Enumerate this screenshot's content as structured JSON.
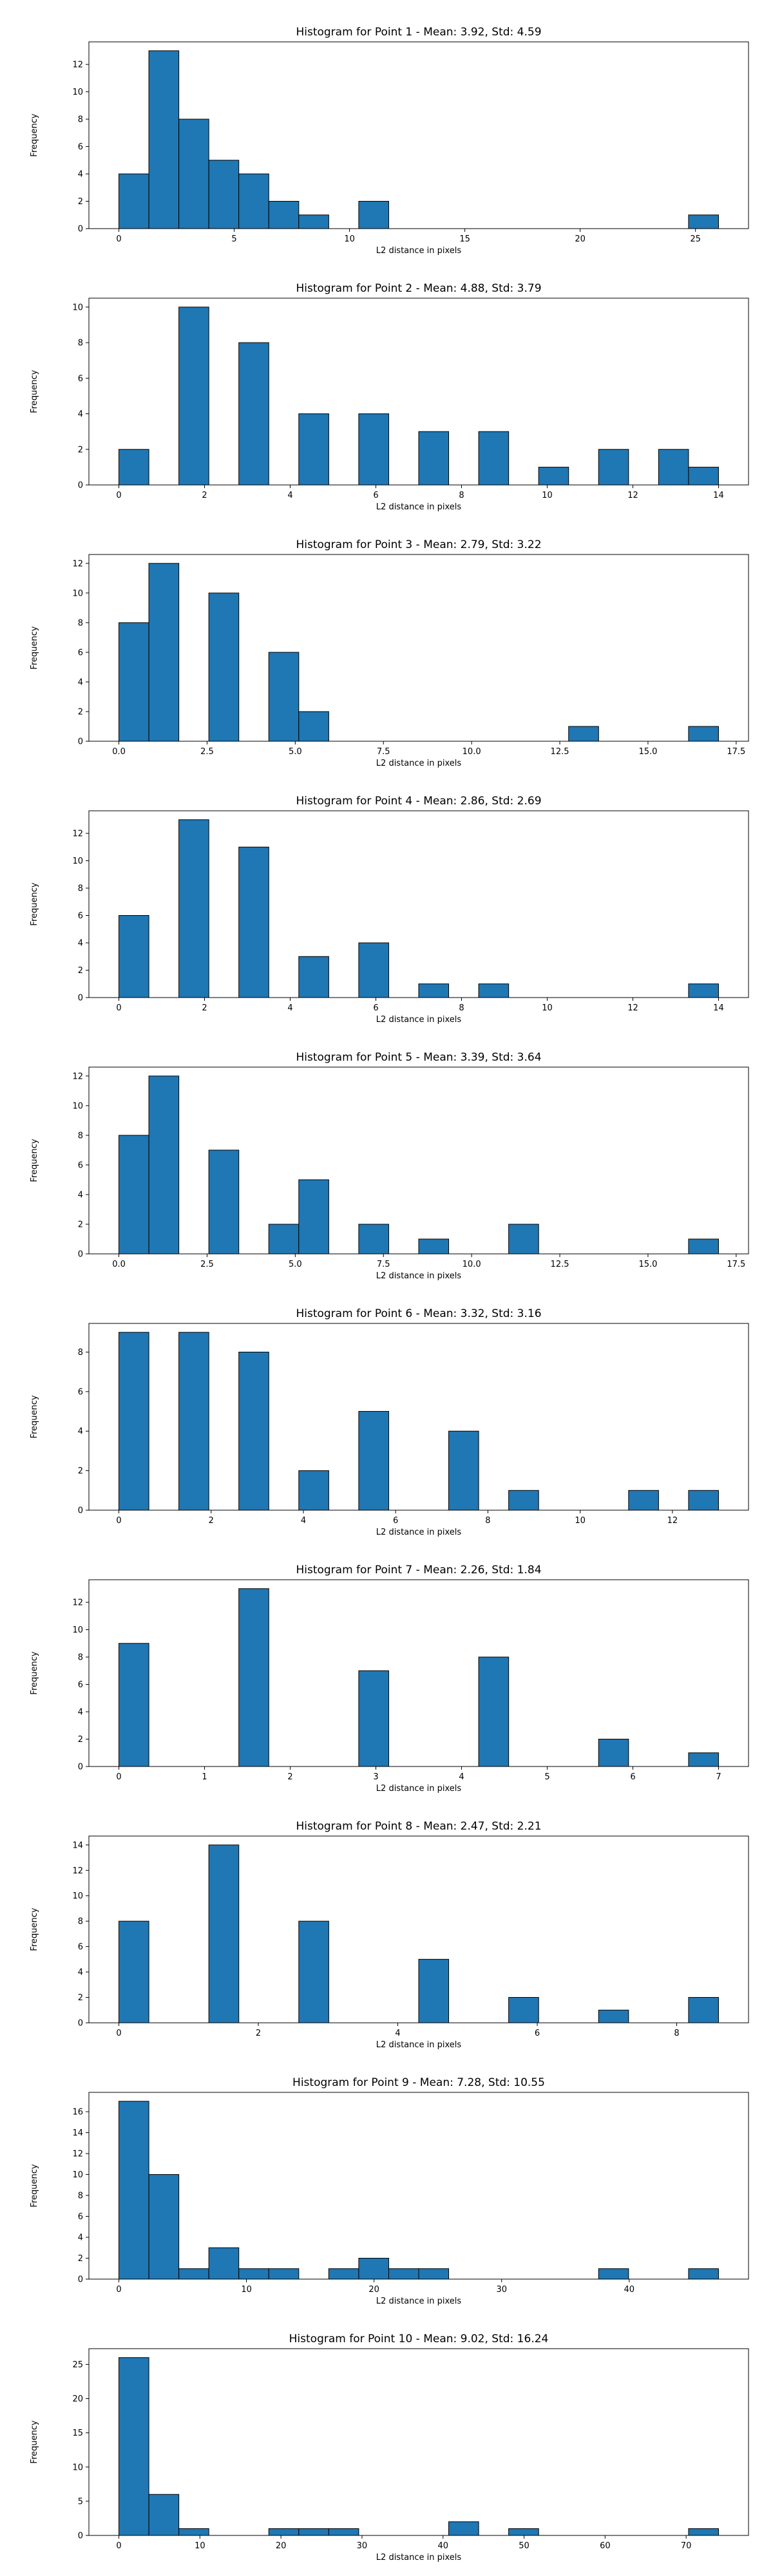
{
  "chart_data": [
    {
      "type": "bar",
      "title": "Histogram for Point 1 - Mean: 3.92, Std: 4.59",
      "xlabel": "L2 distance in pixels",
      "ylabel": "Frequency",
      "xlim": [
        -1.3,
        27.3
      ],
      "ylim": [
        0,
        13.65
      ],
      "xticks": [
        0,
        5,
        10,
        15,
        20,
        25
      ],
      "xtick_labels": [
        "0",
        "5",
        "10",
        "15",
        "20",
        "25"
      ],
      "yticks": [
        0,
        2,
        4,
        6,
        8,
        10,
        12
      ],
      "bins": [
        {
          "x0": 0,
          "x1": 1.3,
          "value": 4
        },
        {
          "x0": 1.3,
          "x1": 2.6,
          "value": 13
        },
        {
          "x0": 2.6,
          "x1": 3.9,
          "value": 8
        },
        {
          "x0": 3.9,
          "x1": 5.2,
          "value": 5
        },
        {
          "x0": 5.2,
          "x1": 6.5,
          "value": 4
        },
        {
          "x0": 6.5,
          "x1": 7.8,
          "value": 2
        },
        {
          "x0": 7.8,
          "x1": 9.1,
          "value": 1
        },
        {
          "x0": 10.4,
          "x1": 11.7,
          "value": 2
        },
        {
          "x0": 24.7,
          "x1": 26.0,
          "value": 1
        }
      ]
    },
    {
      "type": "bar",
      "title": "Histogram for Point 2 - Mean: 4.88, Std: 3.79",
      "xlabel": "L2 distance in pixels",
      "ylabel": "Frequency",
      "xlim": [
        -0.7,
        14.7
      ],
      "ylim": [
        0,
        10.5
      ],
      "xticks": [
        0,
        2,
        4,
        6,
        8,
        10,
        12,
        14
      ],
      "xtick_labels": [
        "0",
        "2",
        "4",
        "6",
        "8",
        "10",
        "12",
        "14"
      ],
      "yticks": [
        0,
        2,
        4,
        6,
        8,
        10
      ],
      "bins": [
        {
          "x0": 0,
          "x1": 0.7,
          "value": 2
        },
        {
          "x0": 1.4,
          "x1": 2.1,
          "value": 10
        },
        {
          "x0": 2.8,
          "x1": 3.5,
          "value": 8
        },
        {
          "x0": 4.2,
          "x1": 4.9,
          "value": 4
        },
        {
          "x0": 5.6,
          "x1": 6.3,
          "value": 4
        },
        {
          "x0": 7.0,
          "x1": 7.7,
          "value": 3
        },
        {
          "x0": 8.4,
          "x1": 9.1,
          "value": 3
        },
        {
          "x0": 9.8,
          "x1": 10.5,
          "value": 1
        },
        {
          "x0": 11.2,
          "x1": 11.9,
          "value": 2
        },
        {
          "x0": 12.6,
          "x1": 13.3,
          "value": 2
        },
        {
          "x0": 13.3,
          "x1": 14.0,
          "value": 1
        }
      ]
    },
    {
      "type": "bar",
      "title": "Histogram for Point 3 - Mean: 2.79, Std: 3.22",
      "xlabel": "L2 distance in pixels",
      "ylabel": "Frequency",
      "xlim": [
        -0.85,
        17.85
      ],
      "ylim": [
        0,
        12.6
      ],
      "xticks": [
        0,
        2.5,
        5,
        7.5,
        10,
        12.5,
        15,
        17.5
      ],
      "xtick_labels": [
        "0.0",
        "2.5",
        "5.0",
        "7.5",
        "10.0",
        "12.5",
        "15.0",
        "17.5"
      ],
      "yticks": [
        0,
        2,
        4,
        6,
        8,
        10,
        12
      ],
      "bins": [
        {
          "x0": 0,
          "x1": 0.85,
          "value": 8
        },
        {
          "x0": 0.85,
          "x1": 1.7,
          "value": 12
        },
        {
          "x0": 2.55,
          "x1": 3.4,
          "value": 10
        },
        {
          "x0": 4.25,
          "x1": 5.1,
          "value": 6
        },
        {
          "x0": 5.1,
          "x1": 5.95,
          "value": 2
        },
        {
          "x0": 12.75,
          "x1": 13.6,
          "value": 1
        },
        {
          "x0": 16.15,
          "x1": 17.0,
          "value": 1
        }
      ]
    },
    {
      "type": "bar",
      "title": "Histogram for Point 4 - Mean: 2.86, Std: 2.69",
      "xlabel": "L2 distance in pixels",
      "ylabel": "Frequency",
      "xlim": [
        -0.7,
        14.7
      ],
      "ylim": [
        0,
        13.65
      ],
      "xticks": [
        0,
        2,
        4,
        6,
        8,
        10,
        12,
        14
      ],
      "xtick_labels": [
        "0",
        "2",
        "4",
        "6",
        "8",
        "10",
        "12",
        "14"
      ],
      "yticks": [
        0,
        2,
        4,
        6,
        8,
        10,
        12
      ],
      "bins": [
        {
          "x0": 0,
          "x1": 0.7,
          "value": 6
        },
        {
          "x0": 1.4,
          "x1": 2.1,
          "value": 13
        },
        {
          "x0": 2.8,
          "x1": 3.5,
          "value": 11
        },
        {
          "x0": 4.2,
          "x1": 4.9,
          "value": 3
        },
        {
          "x0": 5.6,
          "x1": 6.3,
          "value": 4
        },
        {
          "x0": 7.0,
          "x1": 7.7,
          "value": 1
        },
        {
          "x0": 8.4,
          "x1": 9.1,
          "value": 1
        },
        {
          "x0": 13.3,
          "x1": 14.0,
          "value": 1
        }
      ]
    },
    {
      "type": "bar",
      "title": "Histogram for Point 5 - Mean: 3.39, Std: 3.64",
      "xlabel": "L2 distance in pixels",
      "ylabel": "Frequency",
      "xlim": [
        -0.85,
        17.85
      ],
      "ylim": [
        0,
        12.6
      ],
      "xticks": [
        0,
        2.5,
        5,
        7.5,
        10,
        12.5,
        15,
        17.5
      ],
      "xtick_labels": [
        "0.0",
        "2.5",
        "5.0",
        "7.5",
        "10.0",
        "12.5",
        "15.0",
        "17.5"
      ],
      "yticks": [
        0,
        2,
        4,
        6,
        8,
        10,
        12
      ],
      "bins": [
        {
          "x0": 0,
          "x1": 0.85,
          "value": 8
        },
        {
          "x0": 0.85,
          "x1": 1.7,
          "value": 12
        },
        {
          "x0": 2.55,
          "x1": 3.4,
          "value": 7
        },
        {
          "x0": 4.25,
          "x1": 5.1,
          "value": 2
        },
        {
          "x0": 5.1,
          "x1": 5.95,
          "value": 5
        },
        {
          "x0": 6.8,
          "x1": 7.65,
          "value": 2
        },
        {
          "x0": 8.5,
          "x1": 9.35,
          "value": 1
        },
        {
          "x0": 11.05,
          "x1": 11.9,
          "value": 2
        },
        {
          "x0": 16.15,
          "x1": 17.0,
          "value": 1
        }
      ]
    },
    {
      "type": "bar",
      "title": "Histogram for Point 6 - Mean: 3.32, Std: 3.16",
      "xlabel": "L2 distance in pixels",
      "ylabel": "Frequency",
      "xlim": [
        -0.65,
        13.65
      ],
      "ylim": [
        0,
        9.45
      ],
      "xticks": [
        0,
        2,
        4,
        6,
        8,
        10,
        12
      ],
      "xtick_labels": [
        "0",
        "2",
        "4",
        "6",
        "8",
        "10",
        "12"
      ],
      "yticks": [
        0,
        2,
        4,
        6,
        8
      ],
      "bins": [
        {
          "x0": 0,
          "x1": 0.65,
          "value": 9
        },
        {
          "x0": 1.3,
          "x1": 1.95,
          "value": 9
        },
        {
          "x0": 2.6,
          "x1": 3.25,
          "value": 8
        },
        {
          "x0": 3.9,
          "x1": 4.55,
          "value": 2
        },
        {
          "x0": 5.2,
          "x1": 5.85,
          "value": 5
        },
        {
          "x0": 7.15,
          "x1": 7.8,
          "value": 4
        },
        {
          "x0": 8.45,
          "x1": 9.1,
          "value": 1
        },
        {
          "x0": 11.05,
          "x1": 11.7,
          "value": 1
        },
        {
          "x0": 12.35,
          "x1": 13.0,
          "value": 1
        }
      ]
    },
    {
      "type": "bar",
      "title": "Histogram for Point 7 - Mean: 2.26, Std: 1.84",
      "xlabel": "L2 distance in pixels",
      "ylabel": "Frequency",
      "xlim": [
        -0.35,
        7.35
      ],
      "ylim": [
        0,
        13.65
      ],
      "xticks": [
        0,
        1,
        2,
        3,
        4,
        5,
        6,
        7
      ],
      "xtick_labels": [
        "0",
        "1",
        "2",
        "3",
        "4",
        "5",
        "6",
        "7"
      ],
      "yticks": [
        0,
        2,
        4,
        6,
        8,
        10,
        12
      ],
      "bins": [
        {
          "x0": 0,
          "x1": 0.35,
          "value": 9
        },
        {
          "x0": 1.4,
          "x1": 1.75,
          "value": 13
        },
        {
          "x0": 2.8,
          "x1": 3.15,
          "value": 7
        },
        {
          "x0": 4.2,
          "x1": 4.55,
          "value": 8
        },
        {
          "x0": 5.6,
          "x1": 5.95,
          "value": 2
        },
        {
          "x0": 6.65,
          "x1": 7.0,
          "value": 1
        }
      ]
    },
    {
      "type": "bar",
      "title": "Histogram for Point 8 - Mean: 2.47, Std: 2.21",
      "xlabel": "L2 distance in pixels",
      "ylabel": "Frequency",
      "xlim": [
        -0.43,
        9.03
      ],
      "ylim": [
        0,
        14.7
      ],
      "xticks": [
        0,
        2,
        4,
        6,
        8
      ],
      "xtick_labels": [
        "0",
        "2",
        "4",
        "6",
        "8"
      ],
      "yticks": [
        0,
        2,
        4,
        6,
        8,
        10,
        12,
        14
      ],
      "bins": [
        {
          "x0": 0,
          "x1": 0.43,
          "value": 8
        },
        {
          "x0": 1.29,
          "x1": 1.72,
          "value": 14
        },
        {
          "x0": 2.58,
          "x1": 3.01,
          "value": 8
        },
        {
          "x0": 4.3,
          "x1": 4.73,
          "value": 5
        },
        {
          "x0": 5.59,
          "x1": 6.02,
          "value": 2
        },
        {
          "x0": 6.88,
          "x1": 7.31,
          "value": 1
        },
        {
          "x0": 8.17,
          "x1": 8.6,
          "value": 2
        }
      ]
    },
    {
      "type": "bar",
      "title": "Histogram for Point 9 - Mean: 7.28, Std: 10.55",
      "xlabel": "L2 distance in pixels",
      "ylabel": "Frequency",
      "xlim": [
        -2.35,
        49.35
      ],
      "ylim": [
        0,
        17.85
      ],
      "xticks": [
        0,
        10,
        20,
        30,
        40
      ],
      "xtick_labels": [
        "0",
        "10",
        "20",
        "30",
        "40"
      ],
      "yticks": [
        0,
        2,
        4,
        6,
        8,
        10,
        12,
        14,
        16
      ],
      "bins": [
        {
          "x0": 0,
          "x1": 2.35,
          "value": 17
        },
        {
          "x0": 2.35,
          "x1": 4.7,
          "value": 10
        },
        {
          "x0": 4.7,
          "x1": 7.05,
          "value": 1
        },
        {
          "x0": 7.05,
          "x1": 9.4,
          "value": 3
        },
        {
          "x0": 9.4,
          "x1": 11.75,
          "value": 1
        },
        {
          "x0": 11.75,
          "x1": 14.1,
          "value": 1
        },
        {
          "x0": 16.45,
          "x1": 18.8,
          "value": 1
        },
        {
          "x0": 18.8,
          "x1": 21.15,
          "value": 2
        },
        {
          "x0": 21.15,
          "x1": 23.5,
          "value": 1
        },
        {
          "x0": 23.5,
          "x1": 25.85,
          "value": 1
        },
        {
          "x0": 37.6,
          "x1": 39.95,
          "value": 1
        },
        {
          "x0": 44.65,
          "x1": 47.0,
          "value": 1
        }
      ]
    },
    {
      "type": "bar",
      "title": "Histogram for Point 10 - Mean: 9.02, Std: 16.24",
      "xlabel": "L2 distance in pixels",
      "ylabel": "Frequency",
      "xlim": [
        -3.7,
        77.7
      ],
      "ylim": [
        0,
        27.3
      ],
      "xticks": [
        0,
        10,
        20,
        30,
        40,
        50,
        60,
        70
      ],
      "xtick_labels": [
        "0",
        "10",
        "20",
        "30",
        "40",
        "50",
        "60",
        "70"
      ],
      "yticks": [
        0,
        5,
        10,
        15,
        20,
        25
      ],
      "bins": [
        {
          "x0": 0,
          "x1": 3.7,
          "value": 26
        },
        {
          "x0": 3.7,
          "x1": 7.4,
          "value": 6
        },
        {
          "x0": 7.4,
          "x1": 11.1,
          "value": 1
        },
        {
          "x0": 18.5,
          "x1": 22.2,
          "value": 1
        },
        {
          "x0": 22.2,
          "x1": 25.9,
          "value": 1
        },
        {
          "x0": 25.9,
          "x1": 29.6,
          "value": 1
        },
        {
          "x0": 40.7,
          "x1": 44.4,
          "value": 2
        },
        {
          "x0": 48.1,
          "x1": 51.8,
          "value": 1
        },
        {
          "x0": 70.3,
          "x1": 74.0,
          "value": 1
        }
      ]
    }
  ]
}
